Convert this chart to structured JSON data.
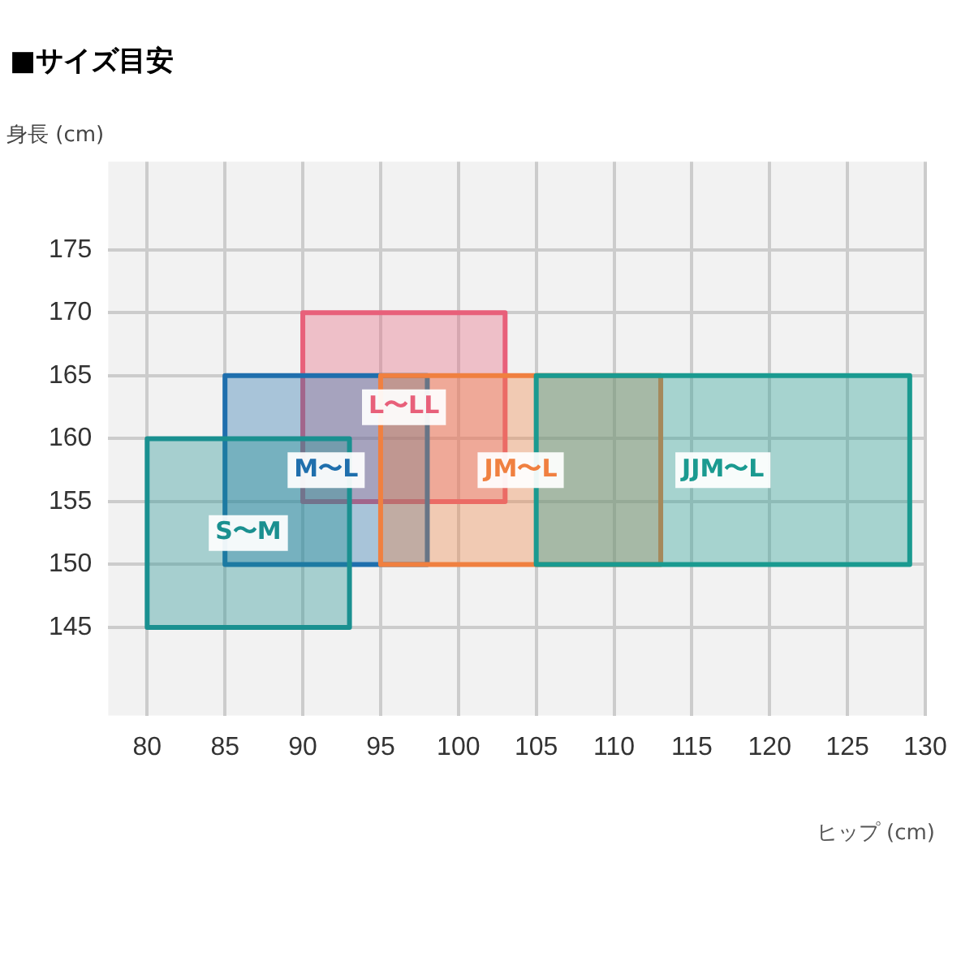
{
  "chart_data": {
    "type": "area",
    "title": "■サイズ目安",
    "xlabel": "ヒップ (cm)",
    "ylabel": "身長 (cm)",
    "xlim": [
      77.5,
      130
    ],
    "xticks": [
      80,
      85,
      90,
      95,
      100,
      105,
      110,
      115,
      120,
      125,
      130
    ],
    "ylim": [
      138,
      182
    ],
    "yticks": [
      145,
      150,
      155,
      160,
      165,
      170,
      175
    ],
    "grid": true,
    "legend": false,
    "series": [
      {
        "name": "JJM〜L",
        "color": "#1a9a90",
        "x": [
          105,
          129,
          129,
          105,
          105
        ],
        "values": [
          150,
          150,
          165,
          165,
          150
        ]
      },
      {
        "name": "JM〜L",
        "color": "#f08040",
        "x": [
          95,
          113,
          113,
          95,
          95
        ],
        "values": [
          150,
          150,
          165,
          165,
          150
        ]
      },
      {
        "name": "S〜M",
        "color": "#1a9090",
        "x": [
          80,
          93,
          93,
          80,
          80
        ],
        "values": [
          145,
          145,
          160,
          160,
          145
        ]
      },
      {
        "name": "M〜L",
        "color": "#1f6fad",
        "x": [
          85,
          98,
          98,
          85,
          85
        ],
        "values": [
          150,
          150,
          165,
          165,
          150
        ]
      },
      {
        "name": "L〜LL",
        "color": "#e8607a",
        "x": [
          90,
          103,
          103,
          90,
          90
        ],
        "values": [
          155,
          155,
          170,
          170,
          155
        ]
      }
    ]
  }
}
